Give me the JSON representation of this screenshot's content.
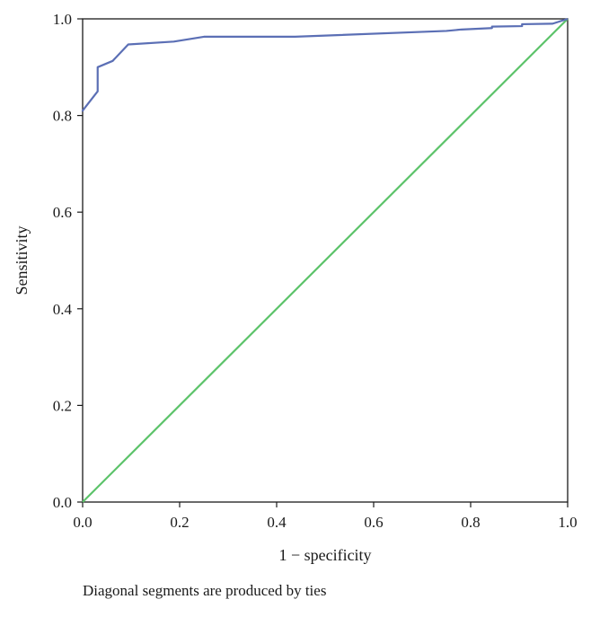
{
  "chart_data": {
    "type": "line",
    "xlabel": "1 − specificity",
    "ylabel": "Sensitivity",
    "xlim": [
      0,
      1
    ],
    "ylim": [
      0,
      1
    ],
    "x_ticks": [
      "0.0",
      "0.2",
      "0.4",
      "0.6",
      "0.8",
      "1.0"
    ],
    "y_ticks": [
      "0.0",
      "0.2",
      "0.4",
      "0.6",
      "0.8",
      "1.0"
    ],
    "grid": false,
    "legend": "none",
    "series": [
      {
        "color": "#5b6fb5",
        "x": [
          0.0,
          0.0,
          0.031,
          0.031,
          0.062,
          0.094,
          0.188,
          0.25,
          0.438,
          0.75,
          0.781,
          0.844,
          0.844,
          0.906,
          0.906,
          0.969,
          1.0
        ],
        "y": [
          0.808,
          0.81,
          0.85,
          0.9,
          0.913,
          0.947,
          0.953,
          0.963,
          0.963,
          0.975,
          0.978,
          0.981,
          0.984,
          0.985,
          0.989,
          0.99,
          1.0
        ]
      },
      {
        "color": "#5cc36a",
        "x": [
          0,
          1
        ],
        "y": [
          0,
          1
        ]
      }
    ],
    "annotation": "Diagonal segments are produced by ties"
  }
}
